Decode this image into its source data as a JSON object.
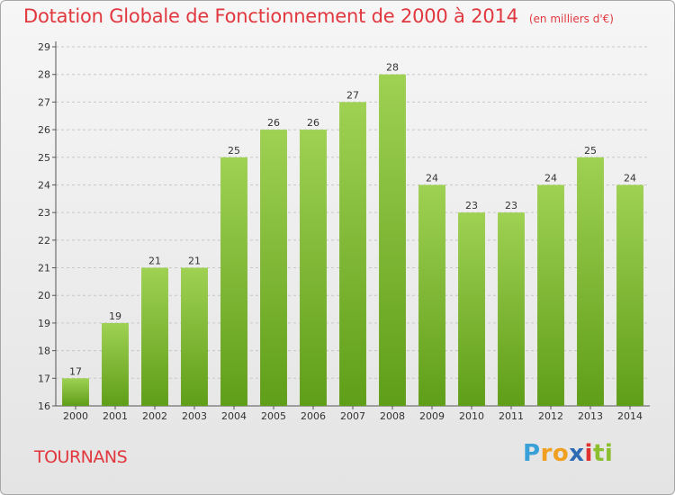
{
  "title": "Dotation Globale de Fonctionnement de 2000 à 2014",
  "subtitle": "(en milliers d'€)",
  "commune": "TOURNANS",
  "logo": {
    "text": "Proxiti",
    "letters": [
      "P",
      "r",
      "o",
      "x",
      "i",
      "t",
      "i"
    ],
    "colors": [
      "#3aa0d8",
      "#f0a020",
      "#f0a020",
      "#2d6cb5",
      "#e03030",
      "#8bbf30",
      "#8bbf30"
    ]
  },
  "colors": {
    "title": "#e0383e",
    "bar_top": "#9fd153",
    "bar_bottom": "#5f9e18",
    "axis": "#555555",
    "grid": "#c8c8c8"
  },
  "chart_data": {
    "type": "bar",
    "title": "Dotation Globale de Fonctionnement de 2000 à 2014",
    "subtitle": "(en milliers d'€)",
    "xlabel": "",
    "ylabel": "",
    "categories": [
      "2000",
      "2001",
      "2002",
      "2003",
      "2004",
      "2005",
      "2006",
      "2007",
      "2008",
      "2009",
      "2010",
      "2011",
      "2012",
      "2013",
      "2014"
    ],
    "values": [
      17,
      19,
      21,
      21,
      25,
      26,
      26,
      27,
      28,
      24,
      23,
      23,
      24,
      25,
      24
    ],
    "ylim": [
      16,
      29
    ],
    "yticks": [
      16,
      17,
      18,
      19,
      20,
      21,
      22,
      23,
      24,
      25,
      26,
      27,
      28,
      29
    ],
    "grid": true,
    "show_value_labels": true
  }
}
